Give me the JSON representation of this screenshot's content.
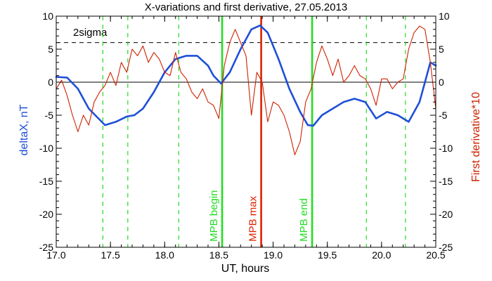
{
  "chart_data": {
    "type": "line",
    "title": "X-variations and first derivative, 27.05.2013",
    "xlabel": "UT, hours",
    "ylabel_left": "deltaX, nT",
    "ylabel_right": "First derivative*10",
    "xlim": [
      17.0,
      20.5
    ],
    "ylim_left": [
      -25,
      10
    ],
    "ylim_right": [
      -25,
      10
    ],
    "x_ticks": [
      "17.0",
      "17.5",
      "18.0",
      "18.5",
      "19.0",
      "19.5",
      "20.0",
      "20.5"
    ],
    "y_ticks_left": [
      "10",
      "5",
      "0",
      "-5",
      "-10",
      "-15",
      "-20",
      "-25"
    ],
    "y_ticks_right": [
      "10",
      "5",
      "0",
      "-5",
      "-10",
      "-15",
      "-20",
      "-25"
    ],
    "two_sigma_label": "2sigma",
    "two_sigma_level": 6,
    "colors": {
      "deltaX": "#1f4fd8",
      "derivative": "#cc2200",
      "markers": "#22dd22",
      "mpb_max": "#dd2200",
      "axis": "#000000"
    },
    "series": [
      {
        "axis": "left",
        "x": [
          17.0,
          17.1,
          17.2,
          17.3,
          17.45,
          17.55,
          17.65,
          17.72,
          17.8,
          17.9,
          18.0,
          18.1,
          18.2,
          18.3,
          18.4,
          18.45,
          18.52,
          18.6,
          18.7,
          18.8,
          18.88,
          18.95,
          19.05,
          19.15,
          19.25,
          19.32,
          19.37,
          19.45,
          19.55,
          19.65,
          19.75,
          19.85,
          19.95,
          20.05,
          20.15,
          20.25,
          20.35,
          20.45,
          20.5
        ],
        "y": [
          0.8,
          0.7,
          -1.0,
          -4.0,
          -6.5,
          -6.0,
          -5.2,
          -5.0,
          -4.0,
          -1.5,
          1.5,
          3.5,
          4.0,
          4.0,
          2.5,
          1.0,
          -0.2,
          1.5,
          5.0,
          8.0,
          8.6,
          7.5,
          3.5,
          -1.0,
          -4.5,
          -6.5,
          -6.6,
          -5.0,
          -4.0,
          -3.0,
          -2.5,
          -3.0,
          -5.5,
          -4.5,
          -5.0,
          -6.0,
          -3.0,
          3.0,
          2.5
        ]
      },
      {
        "axis": "right",
        "x": [
          17.0,
          17.05,
          17.1,
          17.15,
          17.2,
          17.25,
          17.3,
          17.35,
          17.4,
          17.45,
          17.5,
          17.55,
          17.6,
          17.65,
          17.7,
          17.75,
          17.8,
          17.85,
          17.9,
          17.95,
          18.0,
          18.05,
          18.1,
          18.15,
          18.2,
          18.25,
          18.3,
          18.35,
          18.4,
          18.45,
          18.5,
          18.55,
          18.6,
          18.65,
          18.7,
          18.75,
          18.8,
          18.85,
          18.9,
          18.95,
          19.0,
          19.05,
          19.1,
          19.15,
          19.2,
          19.25,
          19.3,
          19.35,
          19.4,
          19.45,
          19.5,
          19.55,
          19.6,
          19.65,
          19.7,
          19.75,
          19.8,
          19.85,
          19.9,
          19.95,
          20.0,
          20.05,
          20.1,
          20.15,
          20.2,
          20.25,
          20.3,
          20.35,
          20.4,
          20.45,
          20.5
        ],
        "y": [
          -1.0,
          0.3,
          -2.0,
          -5.0,
          -7.5,
          -5.0,
          -6.5,
          -3.0,
          -1.5,
          -0.5,
          1.5,
          -0.5,
          3.0,
          1.5,
          5.0,
          4.0,
          5.5,
          3.0,
          4.5,
          3.5,
          1.5,
          1.0,
          4.5,
          1.5,
          0.5,
          -1.5,
          -2.5,
          -1.0,
          -3.0,
          -3.5,
          -5.5,
          2.5,
          6.0,
          8.0,
          6.0,
          4.0,
          -5.0,
          1.5,
          0.0,
          -6.0,
          -3.0,
          -3.5,
          -5.0,
          -7.5,
          -11.0,
          -9.0,
          -3.0,
          -1.0,
          3.0,
          5.5,
          3.5,
          1.0,
          3.5,
          0.0,
          1.0,
          2.5,
          1.0,
          0.5,
          -1.0,
          -3.5,
          0.5,
          0.5,
          -1.0,
          0.0,
          0.5,
          5.0,
          7.5,
          8.5,
          8.0,
          3.0,
          -4.0
        ]
      }
    ],
    "vertical_lines": [
      {
        "x": 17.43,
        "style": "dashed",
        "color": "#22dd22"
      },
      {
        "x": 17.66,
        "style": "dashed",
        "color": "#22dd22"
      },
      {
        "x": 18.13,
        "style": "dashed",
        "color": "#22dd22"
      },
      {
        "x": 18.53,
        "style": "solid",
        "color": "#22dd22",
        "label": "MPB begin"
      },
      {
        "x": 18.89,
        "style": "solid",
        "color": "#dd2200",
        "label": "MPB max"
      },
      {
        "x": 19.36,
        "style": "solid",
        "color": "#22dd22",
        "label": "MPB end"
      },
      {
        "x": 19.86,
        "style": "dashed",
        "color": "#22dd22"
      },
      {
        "x": 20.22,
        "style": "dashed",
        "color": "#22dd22"
      }
    ]
  }
}
